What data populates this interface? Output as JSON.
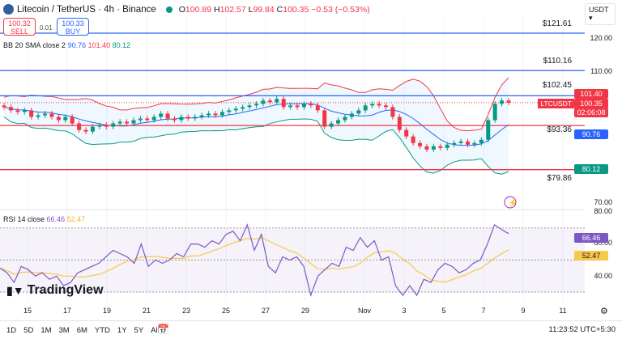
{
  "header": {
    "symbol": "Litecoin / TetherUS · 4h · Binance",
    "open_label": "O",
    "open": "100.89",
    "high_label": "H",
    "high": "102.57",
    "low_label": "L",
    "low": "99.84",
    "close_label": "C",
    "close": "100.35",
    "change": "−0.53 (−0.53%)",
    "currency": "USDT"
  },
  "trade": {
    "sell_price": "100.32",
    "sell_label": "SELL",
    "spread": "0.01",
    "buy_price": "100.33",
    "buy_label": "BUY"
  },
  "bb": {
    "label": "BB 20 SMA close 2",
    "basis": "90.76",
    "upper": "101.40",
    "lower": "80.12"
  },
  "rsi": {
    "label": "RSI 14 close",
    "value": "66.46",
    "ma": "52.47"
  },
  "levels": [
    {
      "label": "$121.61",
      "price": 121.61,
      "color": "#2962ff"
    },
    {
      "label": "$110.16",
      "price": 110.16,
      "color": "#2962ff"
    },
    {
      "label": "$102.45",
      "price": 102.45,
      "color": "#2962ff"
    },
    {
      "label": "$93.36",
      "price": 93.36,
      "color": "#f23645"
    },
    {
      "label": "$79.86",
      "price": 79.86,
      "color": "#f23645"
    }
  ],
  "price_axis": [
    "120.00",
    "110.00",
    "70.00"
  ],
  "rsi_axis": [
    "80.00",
    "60.00",
    "40.00"
  ],
  "tags": {
    "upper": "101.40",
    "symbol": "LTCUSDT",
    "last": "100.35",
    "countdown": "02:06:08",
    "basis": "90.76",
    "lower": "80.12"
  },
  "dates": [
    "15",
    "17",
    "19",
    "21",
    "23",
    "25",
    "27",
    "29",
    "Nov",
    "3",
    "5",
    "7",
    "9",
    "11"
  ],
  "closes": [
    99,
    98,
    97.5,
    98,
    96,
    96.5,
    97,
    96,
    95,
    96,
    94,
    92,
    91.5,
    93,
    93.5,
    93,
    94,
    94.5,
    94,
    95,
    95.5,
    95,
    96,
    97,
    95.5,
    95,
    96,
    95.5,
    96,
    96.5,
    97,
    96.5,
    97.5,
    98,
    98.5,
    99,
    99.5,
    100,
    101,
    100.5,
    101.5,
    99,
    99.5,
    99,
    100,
    99.5,
    98,
    93,
    94,
    95,
    96,
    97,
    98,
    99.5,
    100,
    99.5,
    99,
    96,
    92,
    90,
    88,
    87,
    86,
    87,
    86.5,
    87.5,
    88,
    88.5,
    87.5,
    88,
    89,
    95,
    100,
    101,
    100.35
  ],
  "rsi_series": [
    45,
    42,
    36,
    46,
    44,
    40,
    42,
    38,
    40,
    34,
    36,
    42,
    44,
    46,
    48,
    52,
    56,
    54,
    52,
    48,
    60,
    46,
    50,
    48,
    50,
    54,
    52,
    60,
    60,
    58,
    62,
    60,
    66,
    68,
    62,
    72,
    56,
    66,
    46,
    42,
    52,
    50,
    52,
    46,
    28,
    40,
    44,
    48,
    46,
    58,
    56,
    64,
    58,
    62,
    50,
    52,
    34,
    28,
    34,
    28,
    38,
    36,
    44,
    48,
    46,
    42,
    44,
    48,
    50,
    60,
    72,
    69,
    66.46
  ],
  "timeframes": [
    "1D",
    "5D",
    "1M",
    "3M",
    "6M",
    "YTD",
    "1Y",
    "5Y",
    "All"
  ],
  "clock": "11:23:52 UTC+5:30",
  "brand": "TradingView"
}
